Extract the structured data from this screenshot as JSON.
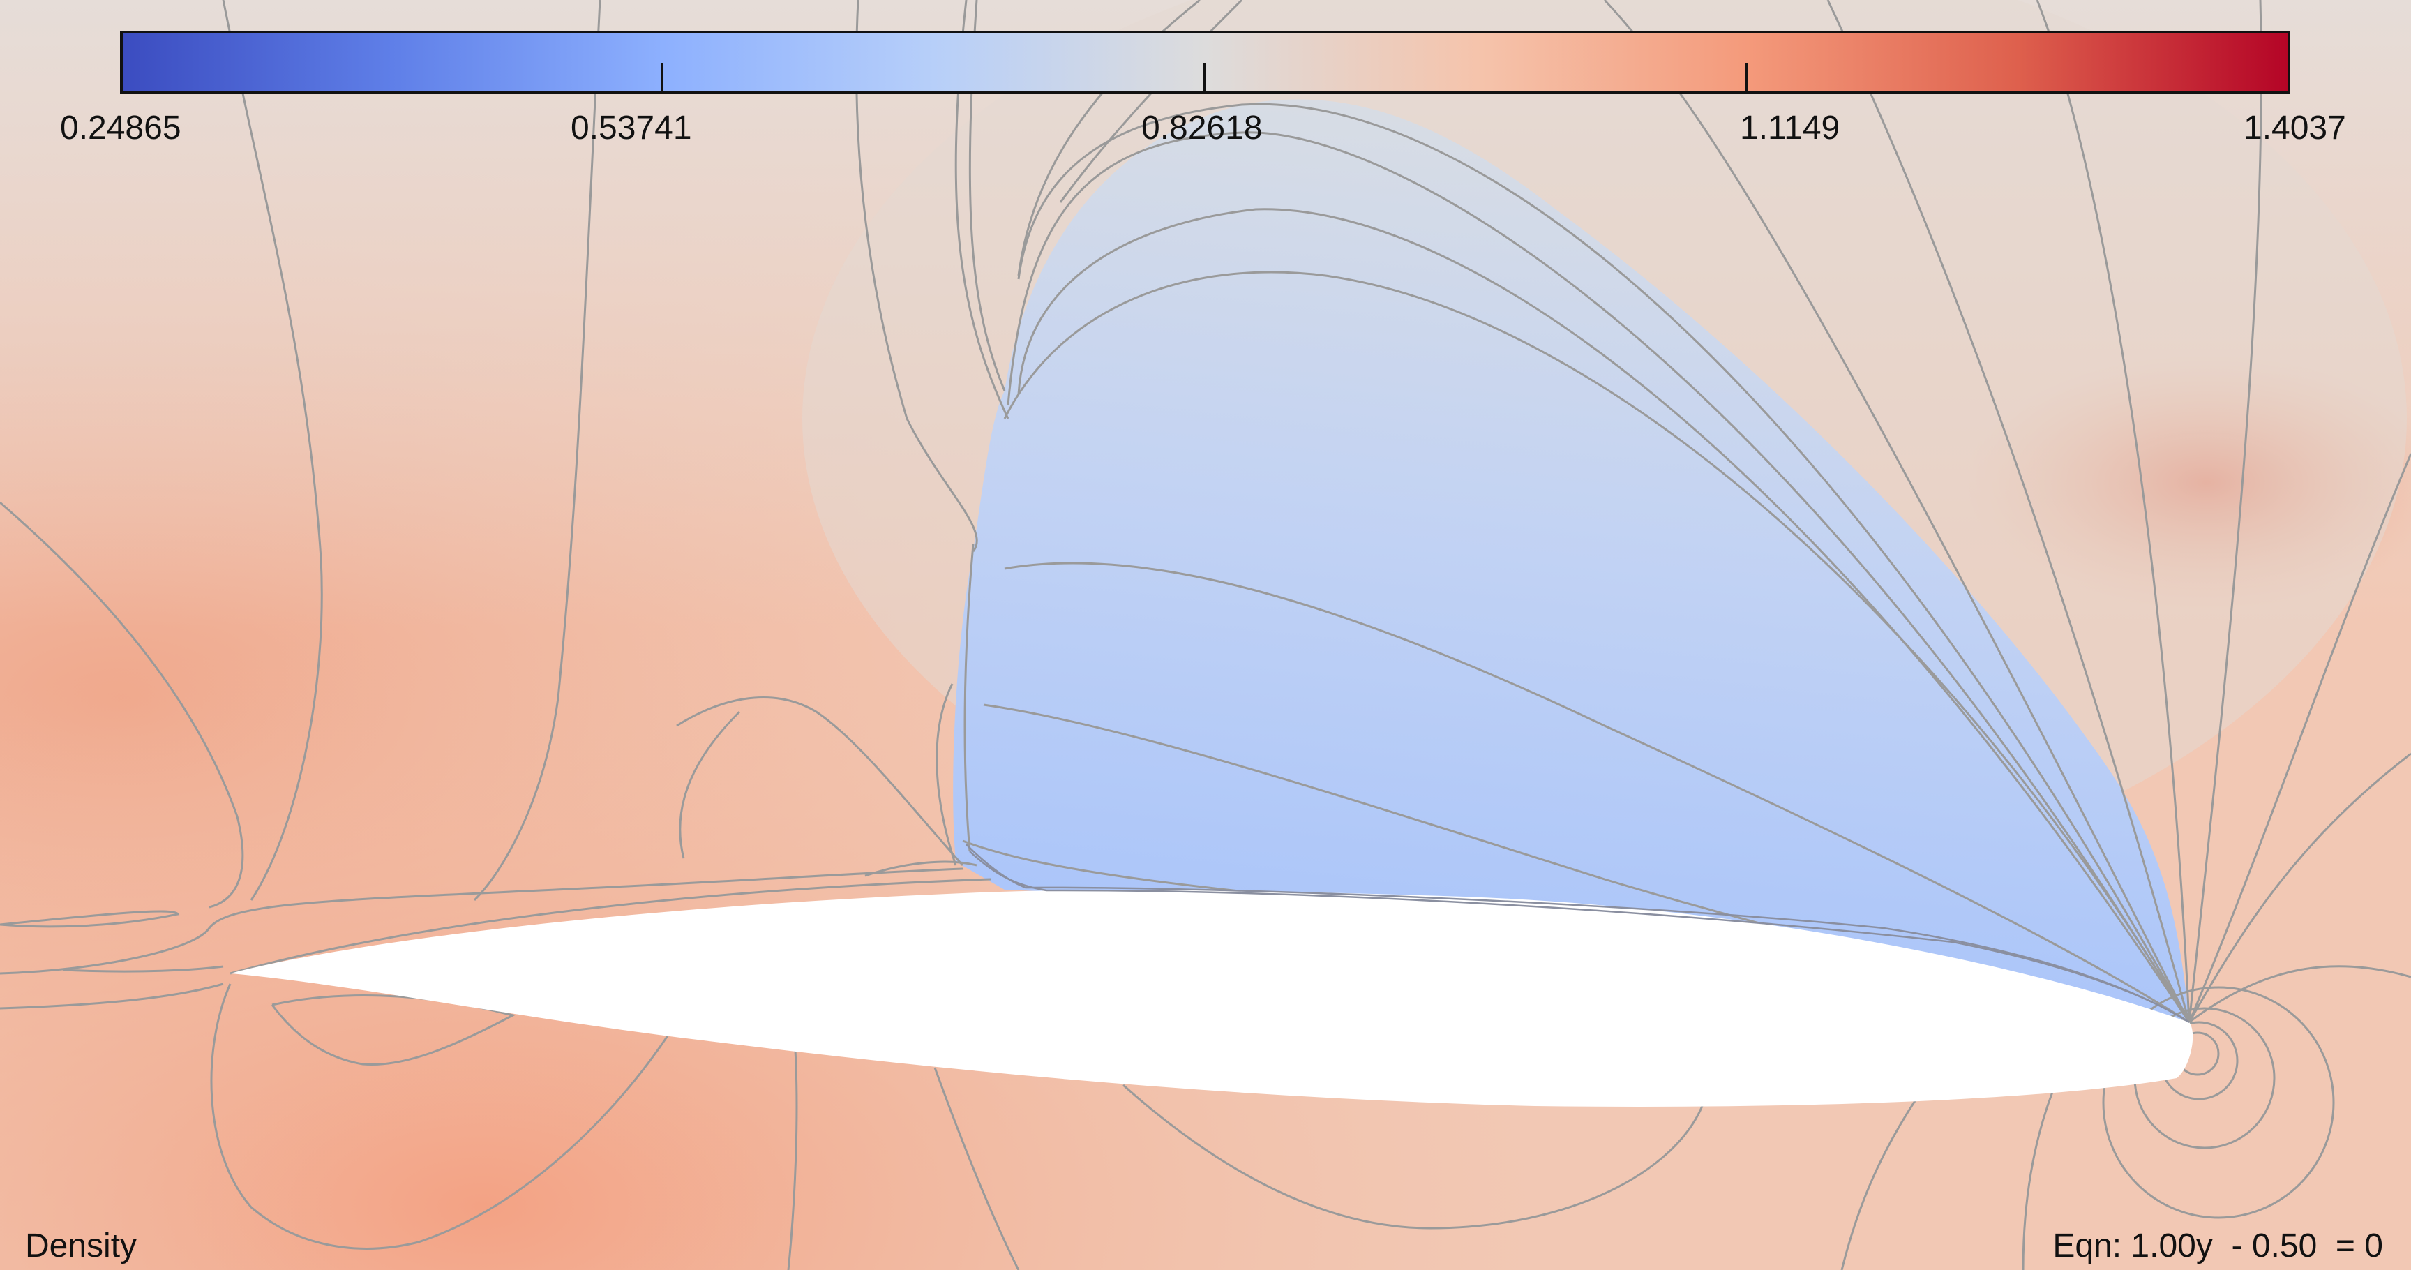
{
  "scalar_bar": {
    "title": "Density",
    "labels": [
      "0.24865",
      "0.53741",
      "0.82618",
      "1.1149",
      "1.4037"
    ],
    "colors": {
      "low": "#3b4cc0",
      "mid": "#dddddd",
      "high": "#b40426"
    },
    "range": [
      0.24865,
      1.4037
    ]
  },
  "slice": {
    "equation": "Eqn: 1.00y  - 0.50  = 0"
  },
  "field": {
    "background_color": "#f2c8b4",
    "body_color": "#ffffff",
    "contour_color": "#9a9a9a",
    "supersonic_region_color": "#b3ccf8"
  }
}
